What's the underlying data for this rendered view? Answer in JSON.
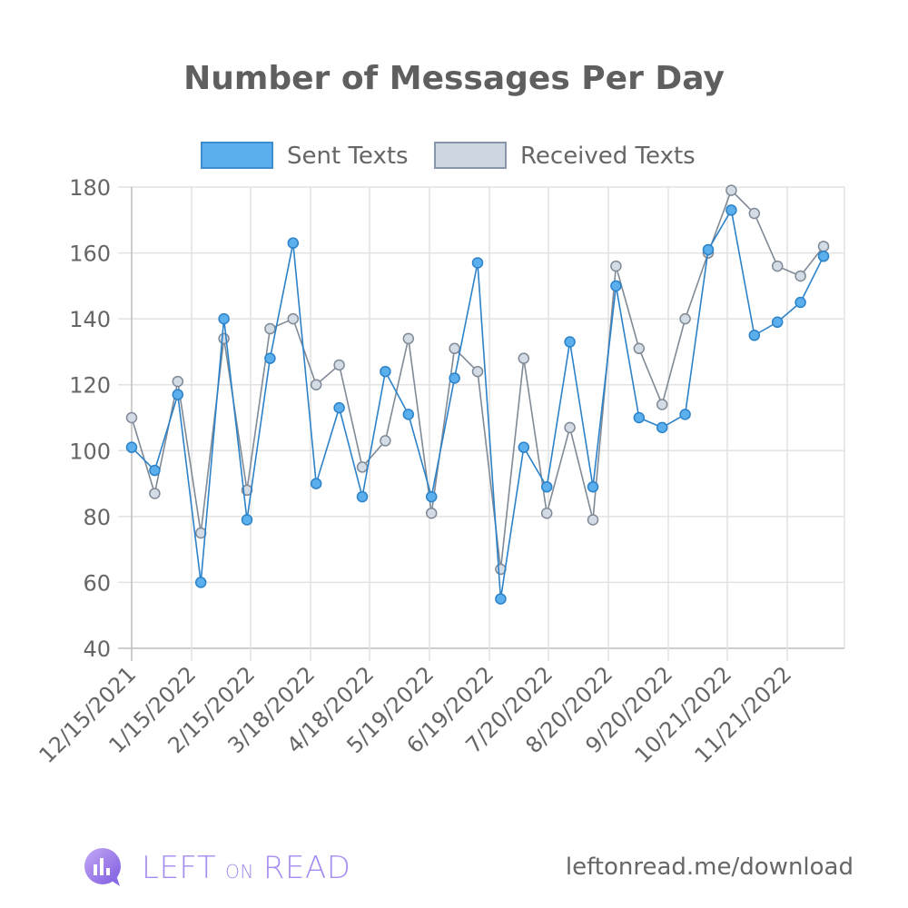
{
  "chart_data": {
    "type": "line",
    "title": "Number of Messages Per Day",
    "x_tick_labels": [
      "12/15/2021",
      "1/15/2022",
      "2/15/2022",
      "3/18/2022",
      "4/18/2022",
      "5/19/2022",
      "6/19/2022",
      "7/20/2022",
      "8/20/2022",
      "9/20/2022",
      "10/21/2022",
      "11/21/2022"
    ],
    "ylim": [
      40,
      180
    ],
    "y_ticks": [
      40,
      60,
      80,
      100,
      120,
      140,
      160,
      180
    ],
    "grid": true,
    "legend_position": "top",
    "series": [
      {
        "name": "Sent Texts",
        "color": "#5aafec",
        "values": [
          101,
          94,
          117,
          60,
          140,
          79,
          128,
          163,
          90,
          113,
          86,
          124,
          111,
          86,
          122,
          157,
          55,
          101,
          89,
          133,
          89,
          150,
          110,
          107,
          111,
          161,
          173,
          135,
          139,
          145,
          159
        ]
      },
      {
        "name": "Received Texts",
        "color": "#cdd6e1",
        "values": [
          110,
          87,
          121,
          75,
          134,
          88,
          137,
          140,
          120,
          126,
          95,
          103,
          134,
          81,
          131,
          124,
          64,
          128,
          81,
          107,
          79,
          156,
          131,
          114,
          140,
          160,
          179,
          172,
          156,
          153,
          162
        ]
      }
    ]
  },
  "branding": {
    "logo_word_1": "LEFT",
    "logo_word_2": "ON",
    "logo_word_3": "READ",
    "url": "leftonread.me/download"
  }
}
